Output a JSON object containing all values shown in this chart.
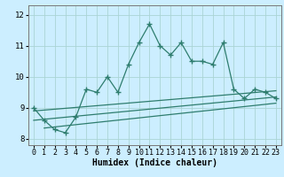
{
  "title": "",
  "xlabel": "Humidex (Indice chaleur)",
  "bg_color": "#cceeff",
  "grid_color": "#aad4d4",
  "line_color": "#2e7d6e",
  "xlim": [
    -0.5,
    23.5
  ],
  "ylim": [
    7.8,
    12.3
  ],
  "yticks": [
    8,
    9,
    10,
    11,
    12
  ],
  "xticks": [
    0,
    1,
    2,
    3,
    4,
    5,
    6,
    7,
    8,
    9,
    10,
    11,
    12,
    13,
    14,
    15,
    16,
    17,
    18,
    19,
    20,
    21,
    22,
    23
  ],
  "main_x": [
    0,
    1,
    2,
    3,
    4,
    5,
    6,
    7,
    8,
    9,
    10,
    11,
    12,
    13,
    14,
    15,
    16,
    17,
    18,
    19,
    20,
    21,
    22,
    23
  ],
  "main_y": [
    9.0,
    8.6,
    8.3,
    8.2,
    8.7,
    9.6,
    9.5,
    10.0,
    9.5,
    10.4,
    11.1,
    11.7,
    11.0,
    10.7,
    11.1,
    10.5,
    10.5,
    10.4,
    11.1,
    9.6,
    9.3,
    9.6,
    9.5,
    9.3
  ],
  "trend1_x": [
    0,
    23
  ],
  "trend1_y": [
    8.9,
    9.55
  ],
  "trend2_x": [
    0,
    23
  ],
  "trend2_y": [
    8.6,
    9.35
  ],
  "trend3_x": [
    1,
    23
  ],
  "trend3_y": [
    8.35,
    9.15
  ],
  "xlabel_fontsize": 7,
  "tick_fontsize": 6
}
